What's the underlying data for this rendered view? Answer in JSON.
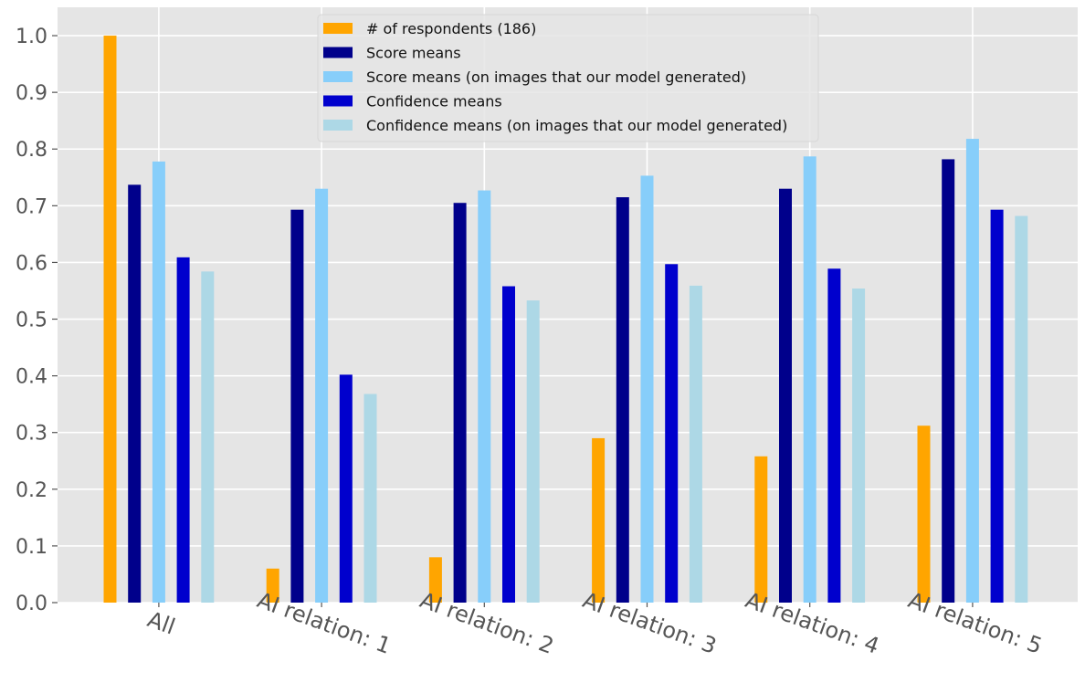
{
  "chart_data": {
    "type": "bar",
    "title": "",
    "xlabel": "",
    "ylabel": "",
    "ylim": [
      0,
      1.05
    ],
    "yticks": [
      "0.0",
      "0.1",
      "0.2",
      "0.3",
      "0.4",
      "0.5",
      "0.6",
      "0.7",
      "0.8",
      "0.9",
      "1.0"
    ],
    "categories": [
      "All",
      "AI relation: 1",
      "AI relation: 2",
      "AI relation: 3",
      "AI relation: 4",
      "AI relation: 5"
    ],
    "grid": true,
    "legend_position": "top-center",
    "series": [
      {
        "name": "# of respondents (186)",
        "color": "#FFA500",
        "values": [
          1.0,
          0.06,
          0.08,
          0.29,
          0.258,
          0.312
        ]
      },
      {
        "name": "Score means",
        "color": "#00008B",
        "values": [
          0.737,
          0.693,
          0.705,
          0.715,
          0.73,
          0.782
        ]
      },
      {
        "name": "Score means (on images that our model generated)",
        "color": "#87CEFA",
        "values": [
          0.778,
          0.73,
          0.727,
          0.753,
          0.787,
          0.818
        ]
      },
      {
        "name": "Confidence means",
        "color": "#0000CD",
        "values": [
          0.609,
          0.402,
          0.558,
          0.597,
          0.589,
          0.693
        ]
      },
      {
        "name": "Confidence means (on images that our model generated)",
        "color": "#ADD8E6",
        "values": [
          0.584,
          0.368,
          0.533,
          0.559,
          0.554,
          0.682
        ]
      }
    ]
  }
}
